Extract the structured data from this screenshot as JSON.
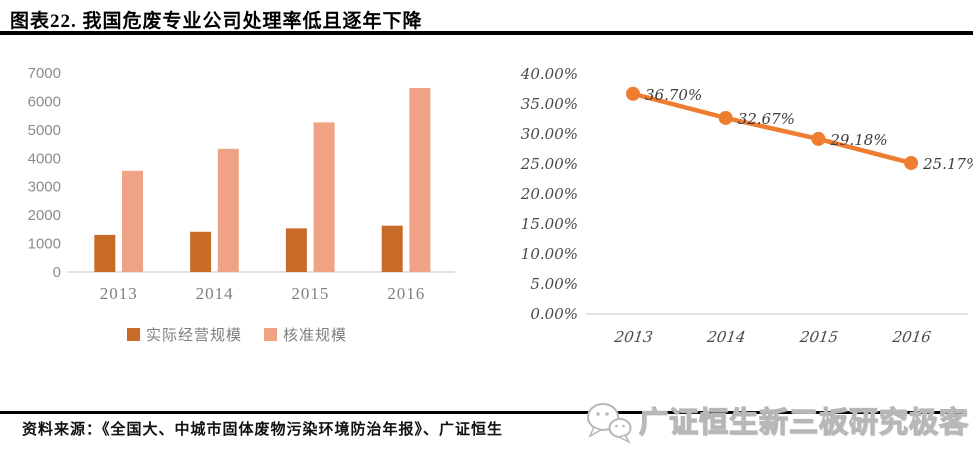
{
  "header": {
    "title": "图表22. 我国危废专业公司处理率低且逐年下降"
  },
  "colors": {
    "actual_bar": "#c96b28",
    "approved_bar": "#f0a284",
    "line": "#ee7d31",
    "axis_labels_left": "#8c8c8c",
    "axis_labels_right": "#4a4a4a",
    "divider": "#000000"
  },
  "chart_data": [
    {
      "type": "bar",
      "categories": [
        "2013",
        "2014",
        "2015",
        "2016"
      ],
      "series": [
        {
          "key": "actual",
          "name": "实际经营规模",
          "color": "#c96b28",
          "values": [
            1306,
            1415,
            1536,
            1629
          ]
        },
        {
          "key": "approved",
          "name": "核准规模",
          "color": "#f0a284",
          "values": [
            3560,
            4333,
            5263,
            6471
          ]
        }
      ],
      "ylim": [
        0,
        7000
      ],
      "yticks": [
        0,
        1000,
        2000,
        3000,
        4000,
        5000,
        6000,
        7000
      ],
      "grid": false,
      "legend_position": "bottom"
    },
    {
      "type": "line",
      "categories": [
        "2013",
        "2014",
        "2015",
        "2016"
      ],
      "series": [
        {
          "key": "rate",
          "name": "",
          "color": "#ee7d31",
          "values": [
            36.7,
            32.67,
            29.18,
            25.17
          ]
        }
      ],
      "data_labels": [
        "36.70%",
        "32.67%",
        "29.18%",
        "25.17%"
      ],
      "ylim": [
        0,
        40
      ],
      "ytick_labels": [
        "0.00%",
        "5.00%",
        "10.00%",
        "15.00%",
        "20.00%",
        "25.00%",
        "30.00%",
        "35.00%",
        "40.00%"
      ],
      "grid": false,
      "legend_position": "none"
    }
  ],
  "footer": {
    "source": "资料来源：《全国大、中城市固体废物污染环境防治年报》、广证恒生",
    "brand": "广证恒生新三板研究极客",
    "brand_icon": "wechat-icon"
  }
}
